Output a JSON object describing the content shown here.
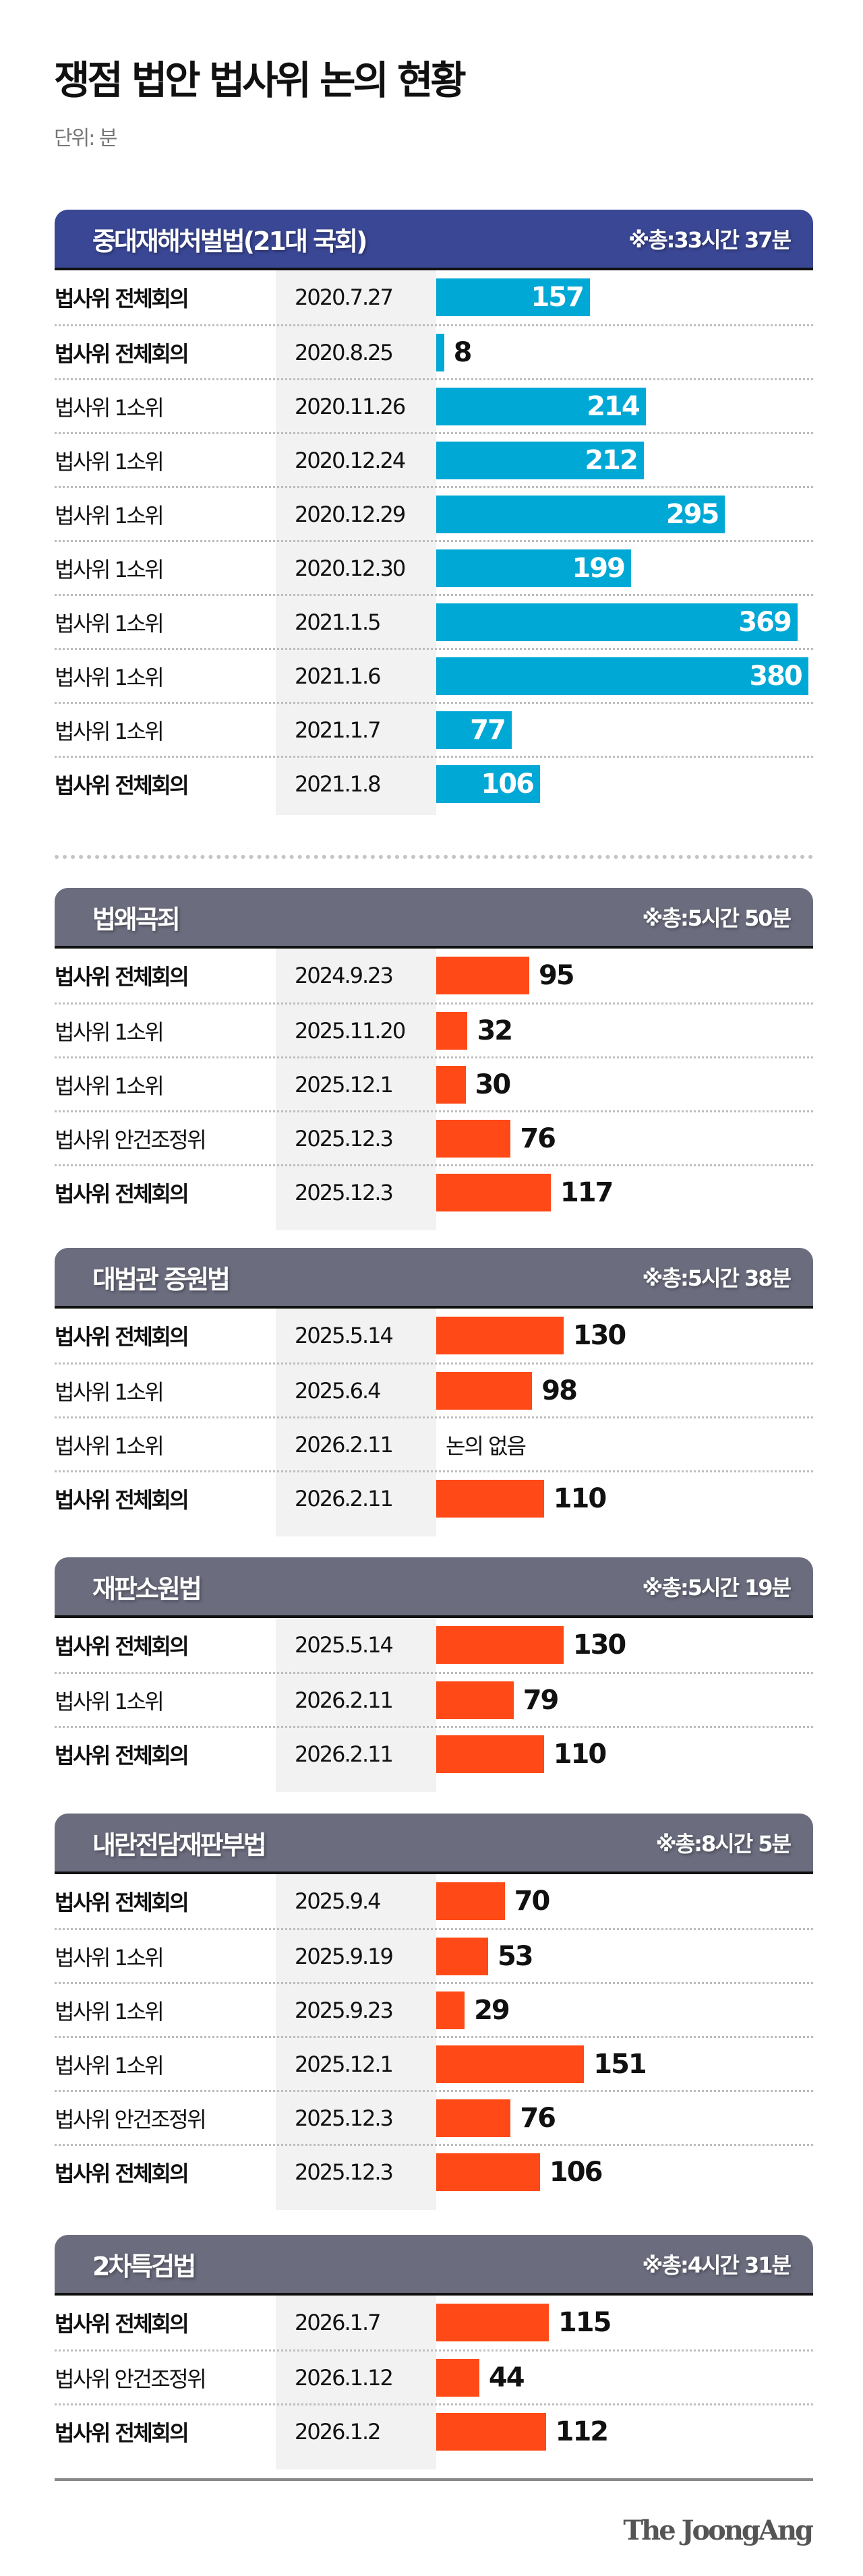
{
  "title": "쟁점 법안 법사위 논의 현황",
  "unit": "단위: 분",
  "colors": {
    "blue_header": "#3a4795",
    "gray_header": "#6b6c7e",
    "blue_bar": "#00a8d6",
    "orange_bar": "#ff4a17",
    "date_column": "#f2f2f2"
  },
  "logo": "The JoongAng",
  "chart_data": {
    "type": "bar",
    "orientation": "horizontal",
    "title": "쟁점 법안 법사위 논의 현황",
    "unit": "단위: 분",
    "sections": [
      {
        "name": "중대재해처벌법(21대 국회)",
        "total": "※총:33시간 37분",
        "header_color": "#3a4795",
        "bar_color": "#00a8d6",
        "rows": [
          {
            "label": "법사위 전체회의",
            "date": "2020.7.27",
            "value": 157
          },
          {
            "label": "법사위 전체회의",
            "date": "2020.8.25",
            "value": 8
          },
          {
            "label": "법사위 1소위",
            "date": "2020.11.26",
            "value": 214
          },
          {
            "label": "법사위 1소위",
            "date": "2020.12.24",
            "value": 212
          },
          {
            "label": "법사위 1소위",
            "date": "2020.12.29",
            "value": 295
          },
          {
            "label": "법사위 1소위",
            "date": "2020.12.30",
            "value": 199
          },
          {
            "label": "법사위 1소위",
            "date": "2021.1.5",
            "value": 369
          },
          {
            "label": "법사위 1소위",
            "date": "2021.1.6",
            "value": 380
          },
          {
            "label": "법사위 1소위",
            "date": "2021.1.7",
            "value": 77
          },
          {
            "label": "법사위 전체회의",
            "date": "2021.1.8",
            "value": 106
          }
        ]
      },
      {
        "name": "법왜곡죄",
        "total": "※총:5시간 50분",
        "header_color": "#6b6c7e",
        "bar_color": "#ff4a17",
        "rows": [
          {
            "label": "법사위 전체회의",
            "date": "2024.9.23",
            "value": 95
          },
          {
            "label": "법사위 1소위",
            "date": "2025.11.20",
            "value": 32
          },
          {
            "label": "법사위 1소위",
            "date": "2025.12.1",
            "value": 30
          },
          {
            "label": "법사위 안건조정위",
            "date": "2025.12.3",
            "value": 76
          },
          {
            "label": "법사위 전체회의",
            "date": "2025.12.3",
            "value": 117
          }
        ]
      },
      {
        "name": "대법관 증원법",
        "total": "※총:5시간 38분",
        "header_color": "#6b6c7e",
        "bar_color": "#ff4a17",
        "rows": [
          {
            "label": "법사위 전체회의",
            "date": "2025.5.14",
            "value": 130
          },
          {
            "label": "법사위 1소위",
            "date": "2025.6.4",
            "value": 98
          },
          {
            "label": "법사위 1소위",
            "date": "2026.2.11",
            "value": null,
            "note": "논의 없음"
          },
          {
            "label": "법사위 전체회의",
            "date": "2026.2.11",
            "value": 110
          }
        ]
      },
      {
        "name": "재판소원법",
        "total": "※총:5시간 19분",
        "header_color": "#6b6c7e",
        "bar_color": "#ff4a17",
        "rows": [
          {
            "label": "법사위 전체회의",
            "date": "2025.5.14",
            "value": 130
          },
          {
            "label": "법사위 1소위",
            "date": "2026.2.11",
            "value": 79
          },
          {
            "label": "법사위 전체회의",
            "date": "2026.2.11",
            "value": 110
          }
        ]
      },
      {
        "name": "내란전담재판부법",
        "total": "※총:8시간 5분",
        "header_color": "#6b6c7e",
        "bar_color": "#ff4a17",
        "rows": [
          {
            "label": "법사위 전체회의",
            "date": "2025.9.4",
            "value": 70
          },
          {
            "label": "법사위 1소위",
            "date": "2025.9.19",
            "value": 53
          },
          {
            "label": "법사위 1소위",
            "date": "2025.9.23",
            "value": 29
          },
          {
            "label": "법사위 1소위",
            "date": "2025.12.1",
            "value": 151
          },
          {
            "label": "법사위 안건조정위",
            "date": "2025.12.3",
            "value": 76
          },
          {
            "label": "법사위 전체회의",
            "date": "2025.12.3",
            "value": 106
          }
        ]
      },
      {
        "name": "2차특검법",
        "total": "※총:4시간 31분",
        "header_color": "#6b6c7e",
        "bar_color": "#ff4a17",
        "rows": [
          {
            "label": "법사위 전체회의",
            "date": "2026.1.7",
            "value": 115
          },
          {
            "label": "법사위 안건조정위",
            "date": "2026.1.12",
            "value": 44
          },
          {
            "label": "법사위 전체회의",
            "date": "2026.1.2",
            "value": 112
          }
        ]
      }
    ]
  }
}
